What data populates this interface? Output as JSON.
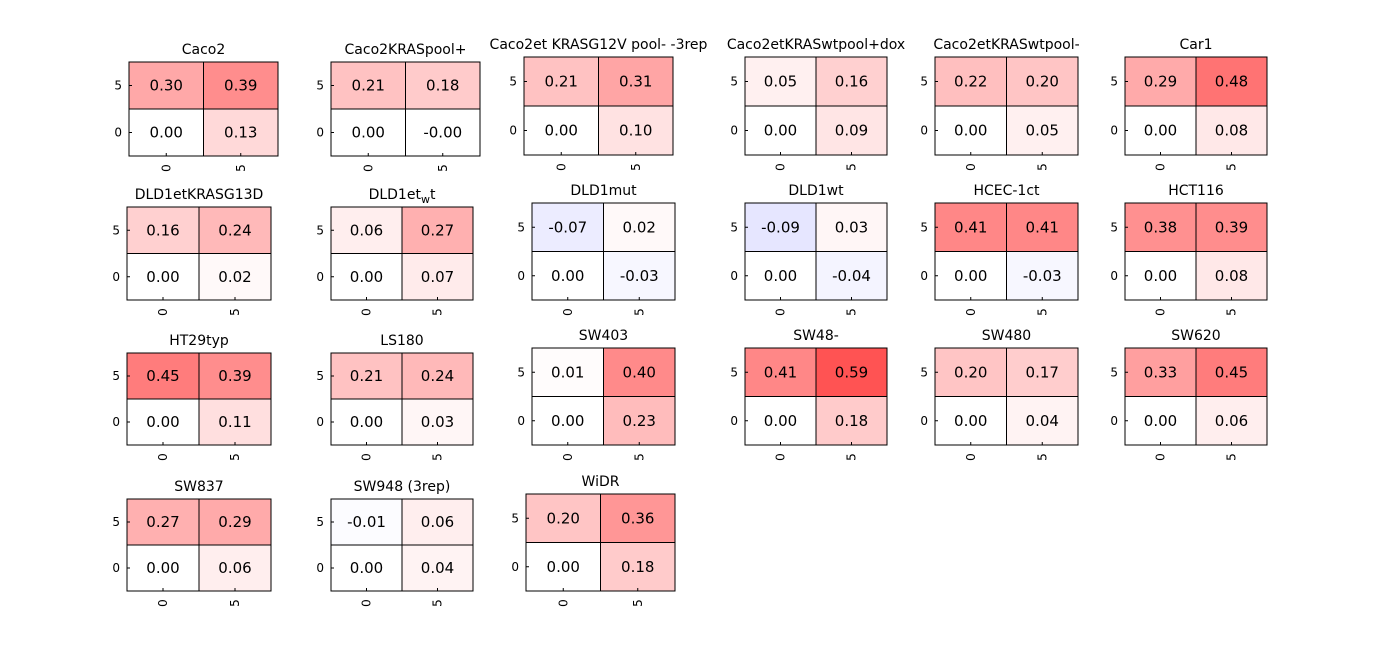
{
  "chart_data": {
    "type": "heatmap",
    "color_scale": {
      "neg": "#e6e6ff",
      "zero": "#ffffff",
      "pos_max": "#ff5050"
    },
    "x_tick_labels": [
      "0",
      "5"
    ],
    "y_tick_labels": [
      "5",
      "0"
    ],
    "panels": [
      {
        "title": "Caco2",
        "values": [
          [
            0.3,
            0.39
          ],
          [
            0.0,
            0.13
          ]
        ],
        "labels": [
          [
            "0.30",
            "0.39"
          ],
          [
            "0.00",
            "0.13"
          ]
        ]
      },
      {
        "title": "Caco2KRASpool+",
        "values": [
          [
            0.21,
            0.18
          ],
          [
            0.0,
            -0.0
          ]
        ],
        "labels": [
          [
            "0.21",
            "0.18"
          ],
          [
            "0.00",
            "-0.00"
          ]
        ]
      },
      {
        "title": "Caco2et KRASG12V pool- -3rep",
        "values": [
          [
            0.21,
            0.31
          ],
          [
            0.0,
            0.1
          ]
        ],
        "labels": [
          [
            "0.21",
            "0.31"
          ],
          [
            "0.00",
            "0.10"
          ]
        ]
      },
      {
        "title": "Caco2etKRASwtpool+dox",
        "values": [
          [
            0.05,
            0.16
          ],
          [
            0.0,
            0.09
          ]
        ],
        "labels": [
          [
            "0.05",
            "0.16"
          ],
          [
            "0.00",
            "0.09"
          ]
        ]
      },
      {
        "title": "Caco2etKRASwtpool-",
        "values": [
          [
            0.22,
            0.2
          ],
          [
            0.0,
            0.05
          ]
        ],
        "labels": [
          [
            "0.22",
            "0.20"
          ],
          [
            "0.00",
            "0.05"
          ]
        ]
      },
      {
        "title": "Car1",
        "values": [
          [
            0.29,
            0.48
          ],
          [
            0.0,
            0.08
          ]
        ],
        "labels": [
          [
            "0.29",
            "0.48"
          ],
          [
            "0.00",
            "0.08"
          ]
        ]
      },
      {
        "title": "DLD1etKRASG13D",
        "values": [
          [
            0.16,
            0.24
          ],
          [
            0.0,
            0.02
          ]
        ],
        "labels": [
          [
            "0.16",
            "0.24"
          ],
          [
            "0.00",
            "0.02"
          ]
        ]
      },
      {
        "title": "DLD1et",
        "title_sub": "w",
        "title_suffix": "t",
        "values": [
          [
            0.06,
            0.27
          ],
          [
            0.0,
            0.07
          ]
        ],
        "labels": [
          [
            "0.06",
            "0.27"
          ],
          [
            "0.00",
            "0.07"
          ]
        ]
      },
      {
        "title": "DLD1mut",
        "values": [
          [
            -0.07,
            0.02
          ],
          [
            0.0,
            -0.03
          ]
        ],
        "labels": [
          [
            "-0.07",
            "0.02"
          ],
          [
            "0.00",
            "-0.03"
          ]
        ]
      },
      {
        "title": "DLD1wt",
        "values": [
          [
            -0.09,
            0.03
          ],
          [
            0.0,
            -0.04
          ]
        ],
        "labels": [
          [
            "-0.09",
            "0.03"
          ],
          [
            "0.00",
            "-0.04"
          ]
        ]
      },
      {
        "title": "HCEC-1ct",
        "values": [
          [
            0.41,
            0.41
          ],
          [
            0.0,
            -0.03
          ]
        ],
        "labels": [
          [
            "0.41",
            "0.41"
          ],
          [
            "0.00",
            "-0.03"
          ]
        ]
      },
      {
        "title": "HCT116",
        "values": [
          [
            0.38,
            0.39
          ],
          [
            0.0,
            0.08
          ]
        ],
        "labels": [
          [
            "0.38",
            "0.39"
          ],
          [
            "0.00",
            "0.08"
          ]
        ]
      },
      {
        "title": "HT29typ",
        "values": [
          [
            0.45,
            0.39
          ],
          [
            0.0,
            0.11
          ]
        ],
        "labels": [
          [
            "0.45",
            "0.39"
          ],
          [
            "0.00",
            "0.11"
          ]
        ]
      },
      {
        "title": "LS180",
        "values": [
          [
            0.21,
            0.24
          ],
          [
            0.0,
            0.03
          ]
        ],
        "labels": [
          [
            "0.21",
            "0.24"
          ],
          [
            "0.00",
            "0.03"
          ]
        ]
      },
      {
        "title": "SW403",
        "values": [
          [
            0.01,
            0.4
          ],
          [
            0.0,
            0.23
          ]
        ],
        "labels": [
          [
            "0.01",
            "0.40"
          ],
          [
            "0.00",
            "0.23"
          ]
        ]
      },
      {
        "title": "SW48-",
        "values": [
          [
            0.41,
            0.59
          ],
          [
            0.0,
            0.18
          ]
        ],
        "labels": [
          [
            "0.41",
            "0.59"
          ],
          [
            "0.00",
            "0.18"
          ]
        ]
      },
      {
        "title": "SW480",
        "values": [
          [
            0.2,
            0.17
          ],
          [
            0.0,
            0.04
          ]
        ],
        "labels": [
          [
            "0.20",
            "0.17"
          ],
          [
            "0.00",
            "0.04"
          ]
        ]
      },
      {
        "title": "SW620",
        "values": [
          [
            0.33,
            0.45
          ],
          [
            0.0,
            0.06
          ]
        ],
        "labels": [
          [
            "0.33",
            "0.45"
          ],
          [
            "0.00",
            "0.06"
          ]
        ]
      },
      {
        "title": "SW837",
        "values": [
          [
            0.27,
            0.29
          ],
          [
            0.0,
            0.06
          ]
        ],
        "labels": [
          [
            "0.27",
            "0.29"
          ],
          [
            "0.00",
            "0.06"
          ]
        ]
      },
      {
        "title": "SW948 (3rep)",
        "values": [
          [
            -0.01,
            0.06
          ],
          [
            0.0,
            0.04
          ]
        ],
        "labels": [
          [
            "-0.01",
            "0.06"
          ],
          [
            "0.00",
            "0.04"
          ]
        ]
      },
      {
        "title": "WiDR",
        "values": [
          [
            0.2,
            0.36
          ],
          [
            0.0,
            0.18
          ]
        ],
        "labels": [
          [
            "0.20",
            "0.36"
          ],
          [
            "0.00",
            "0.18"
          ]
        ]
      }
    ]
  }
}
